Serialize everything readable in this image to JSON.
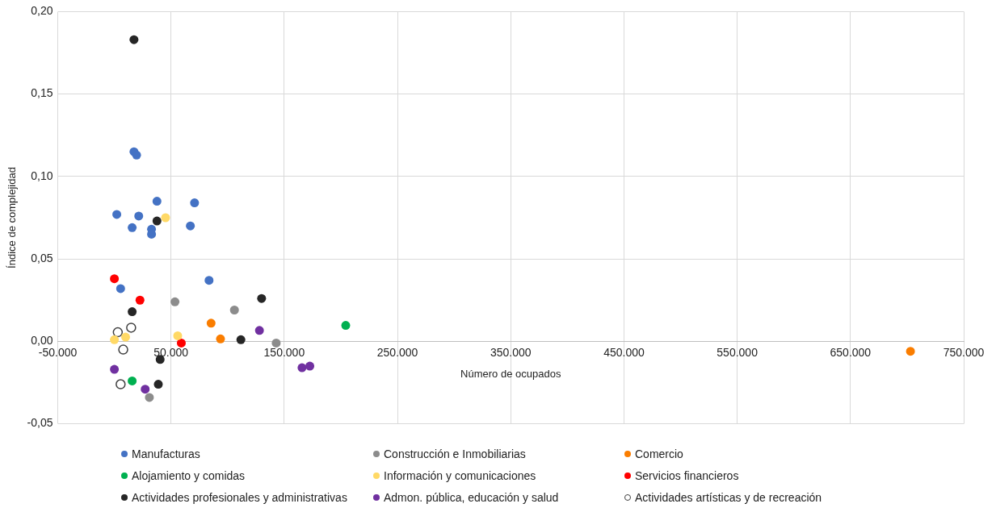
{
  "chart_data": {
    "type": "scatter",
    "xlabel": "Número de ocupados",
    "ylabel": "Índice de complejidad",
    "xlim": [
      -50000,
      750000
    ],
    "ylim": [
      -0.05,
      0.2
    ],
    "xticks": [
      {
        "value": -50000,
        "label": "-50.000"
      },
      {
        "value": 50000,
        "label": "50.000"
      },
      {
        "value": 150000,
        "label": "150.000"
      },
      {
        "value": 250000,
        "label": "250.000"
      },
      {
        "value": 350000,
        "label": "350.000"
      },
      {
        "value": 450000,
        "label": "450.000"
      },
      {
        "value": 550000,
        "label": "550.000"
      },
      {
        "value": 650000,
        "label": "650.000"
      },
      {
        "value": 750000,
        "label": "750.000"
      }
    ],
    "yticks": [
      {
        "value": -0.05,
        "label": "-0,05"
      },
      {
        "value": 0,
        "label": "0,00"
      },
      {
        "value": 0.05,
        "label": "0,05"
      },
      {
        "value": 0.1,
        "label": "0,10"
      },
      {
        "value": 0.15,
        "label": "0,15"
      },
      {
        "value": 0.2,
        "label": "0,20"
      }
    ],
    "grid": true,
    "legend": "bottom",
    "marker": "circle",
    "series": [
      {
        "name": "Manufacturas",
        "color": "#4472c4",
        "x": [
          2100,
          15700,
          17300,
          19600,
          21500,
          32800,
          32800,
          37600,
          67100,
          70800,
          5500,
          83600
        ],
        "values": [
          0.077,
          0.069,
          0.115,
          0.113,
          0.076,
          0.068,
          0.065,
          0.085,
          0.07,
          0.084,
          0.032,
          0.037
        ]
      },
      {
        "name": "Construcción e Inmobiliarias",
        "color": "#8c8c8c",
        "x": [
          53500,
          106000,
          142900,
          30900
        ],
        "values": [
          0.024,
          0.019,
          -0.001,
          -0.034
        ]
      },
      {
        "name": "Comercio",
        "color": "#fa7d00",
        "x": [
          85400,
          93700,
          703000
        ],
        "values": [
          0.011,
          0.0015,
          -0.006
        ]
      },
      {
        "name": "Alojamiento y comidas",
        "color": "#00b050",
        "x": [
          15700,
          204300
        ],
        "values": [
          -0.024,
          0.0097
        ]
      },
      {
        "name": "Información y comunicaciones",
        "color": "#ffd966",
        "x": [
          45200,
          0,
          3000,
          9900,
          55900
        ],
        "values": [
          0.075,
          0.001,
          null,
          0.0026,
          0.0034
        ]
      },
      {
        "name": "Servicios financieros",
        "color": "#ff0000",
        "x": [
          0,
          22600,
          59100
        ],
        "values": [
          0.038,
          0.025,
          -0.001
        ]
      },
      {
        "name": "Actividades profesionales y administrativas",
        "color": "#262626",
        "x": [
          17300,
          37600,
          15700,
          40400,
          38800,
          111700,
          130000
        ],
        "values": [
          0.183,
          0.073,
          0.018,
          -0.011,
          -0.026,
          0.001,
          0.026
        ]
      },
      {
        "name": "Admon. pública, educación y salud",
        "color": "#7030a0",
        "x": [
          0,
          27200,
          128100,
          165700,
          172600
        ],
        "values": [
          -0.017,
          -0.029,
          0.0066,
          -0.016,
          -0.015
        ]
      },
      {
        "name": "Actividades artísticas y de recreación",
        "color": "#ffffff",
        "x": [
          3000,
          14800,
          7800,
          5500
        ],
        "values": [
          0.0055,
          0.0083,
          -0.005,
          -0.026
        ]
      }
    ]
  }
}
